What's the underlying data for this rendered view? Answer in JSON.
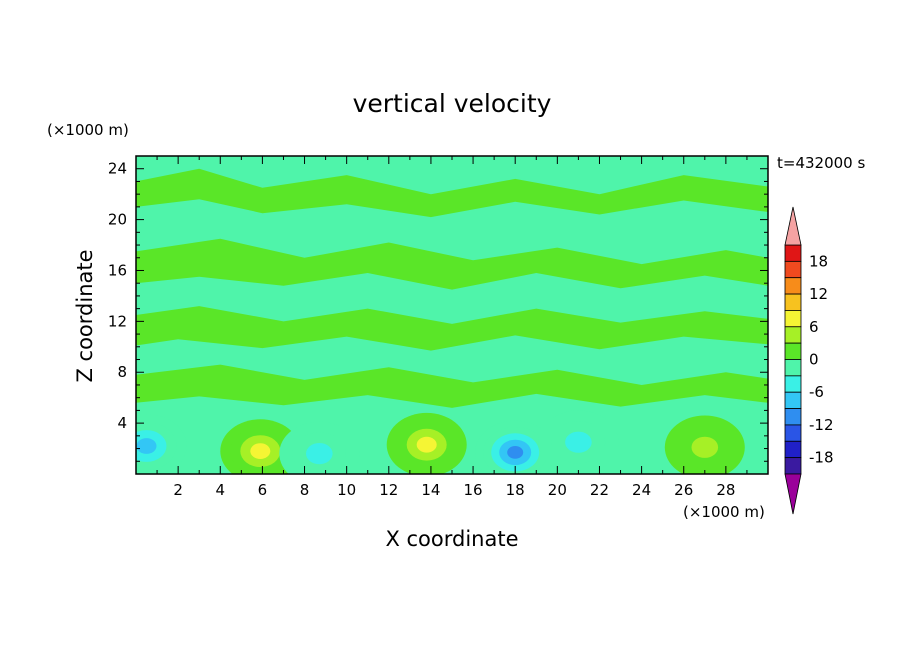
{
  "chart_data": {
    "type": "heatmap",
    "title": "vertical velocity",
    "xlabel": "X coordinate",
    "ylabel": "Z coordinate",
    "x_unit": "(×1000 m)",
    "y_unit": "(×1000 m)",
    "time_label": "t=432000 s",
    "xlim": [
      0,
      30
    ],
    "ylim": [
      0,
      25
    ],
    "x_ticks": [
      "2",
      "4",
      "6",
      "8",
      "10",
      "12",
      "14",
      "16",
      "18",
      "20",
      "22",
      "24",
      "26",
      "28"
    ],
    "y_ticks": [
      "4",
      "8",
      "12",
      "16",
      "20",
      "24"
    ],
    "colorbar": {
      "labels": [
        "18",
        "12",
        "6",
        "0",
        "-6",
        "-12",
        "-18"
      ],
      "levels": [
        -21,
        -18,
        -15,
        -12,
        -9,
        -6,
        -3,
        0,
        3,
        6,
        9,
        12,
        15,
        18,
        21
      ],
      "colors": [
        "#9a009a",
        "#3a1aa0",
        "#2020c8",
        "#2a55e6",
        "#2f8ef0",
        "#33c6f5",
        "#3af0e6",
        "#4ff4aa",
        "#5ae628",
        "#a6f026",
        "#f5f534",
        "#f7c21f",
        "#f78c1a",
        "#f04a1f",
        "#e01616",
        "#f5a3a3"
      ]
    },
    "features": [
      {
        "x": 5.9,
        "z": 1.8,
        "w": 8.0,
        "kind": "updraft"
      },
      {
        "x": 13.8,
        "z": 2.3,
        "w": 6.5,
        "kind": "updraft"
      },
      {
        "x": 27.0,
        "z": 2.1,
        "w": 5.5,
        "kind": "updraft"
      },
      {
        "x": 18.0,
        "z": 1.7,
        "w": -9.5,
        "kind": "downdraft"
      },
      {
        "x": 8.7,
        "z": 1.6,
        "w": -6.0,
        "kind": "downdraft"
      },
      {
        "x": 0.5,
        "z": 2.2,
        "w": -7.0,
        "kind": "downdraft"
      },
      {
        "x": 21.0,
        "z": 2.5,
        "w": -4.0,
        "kind": "downdraft"
      }
    ]
  }
}
